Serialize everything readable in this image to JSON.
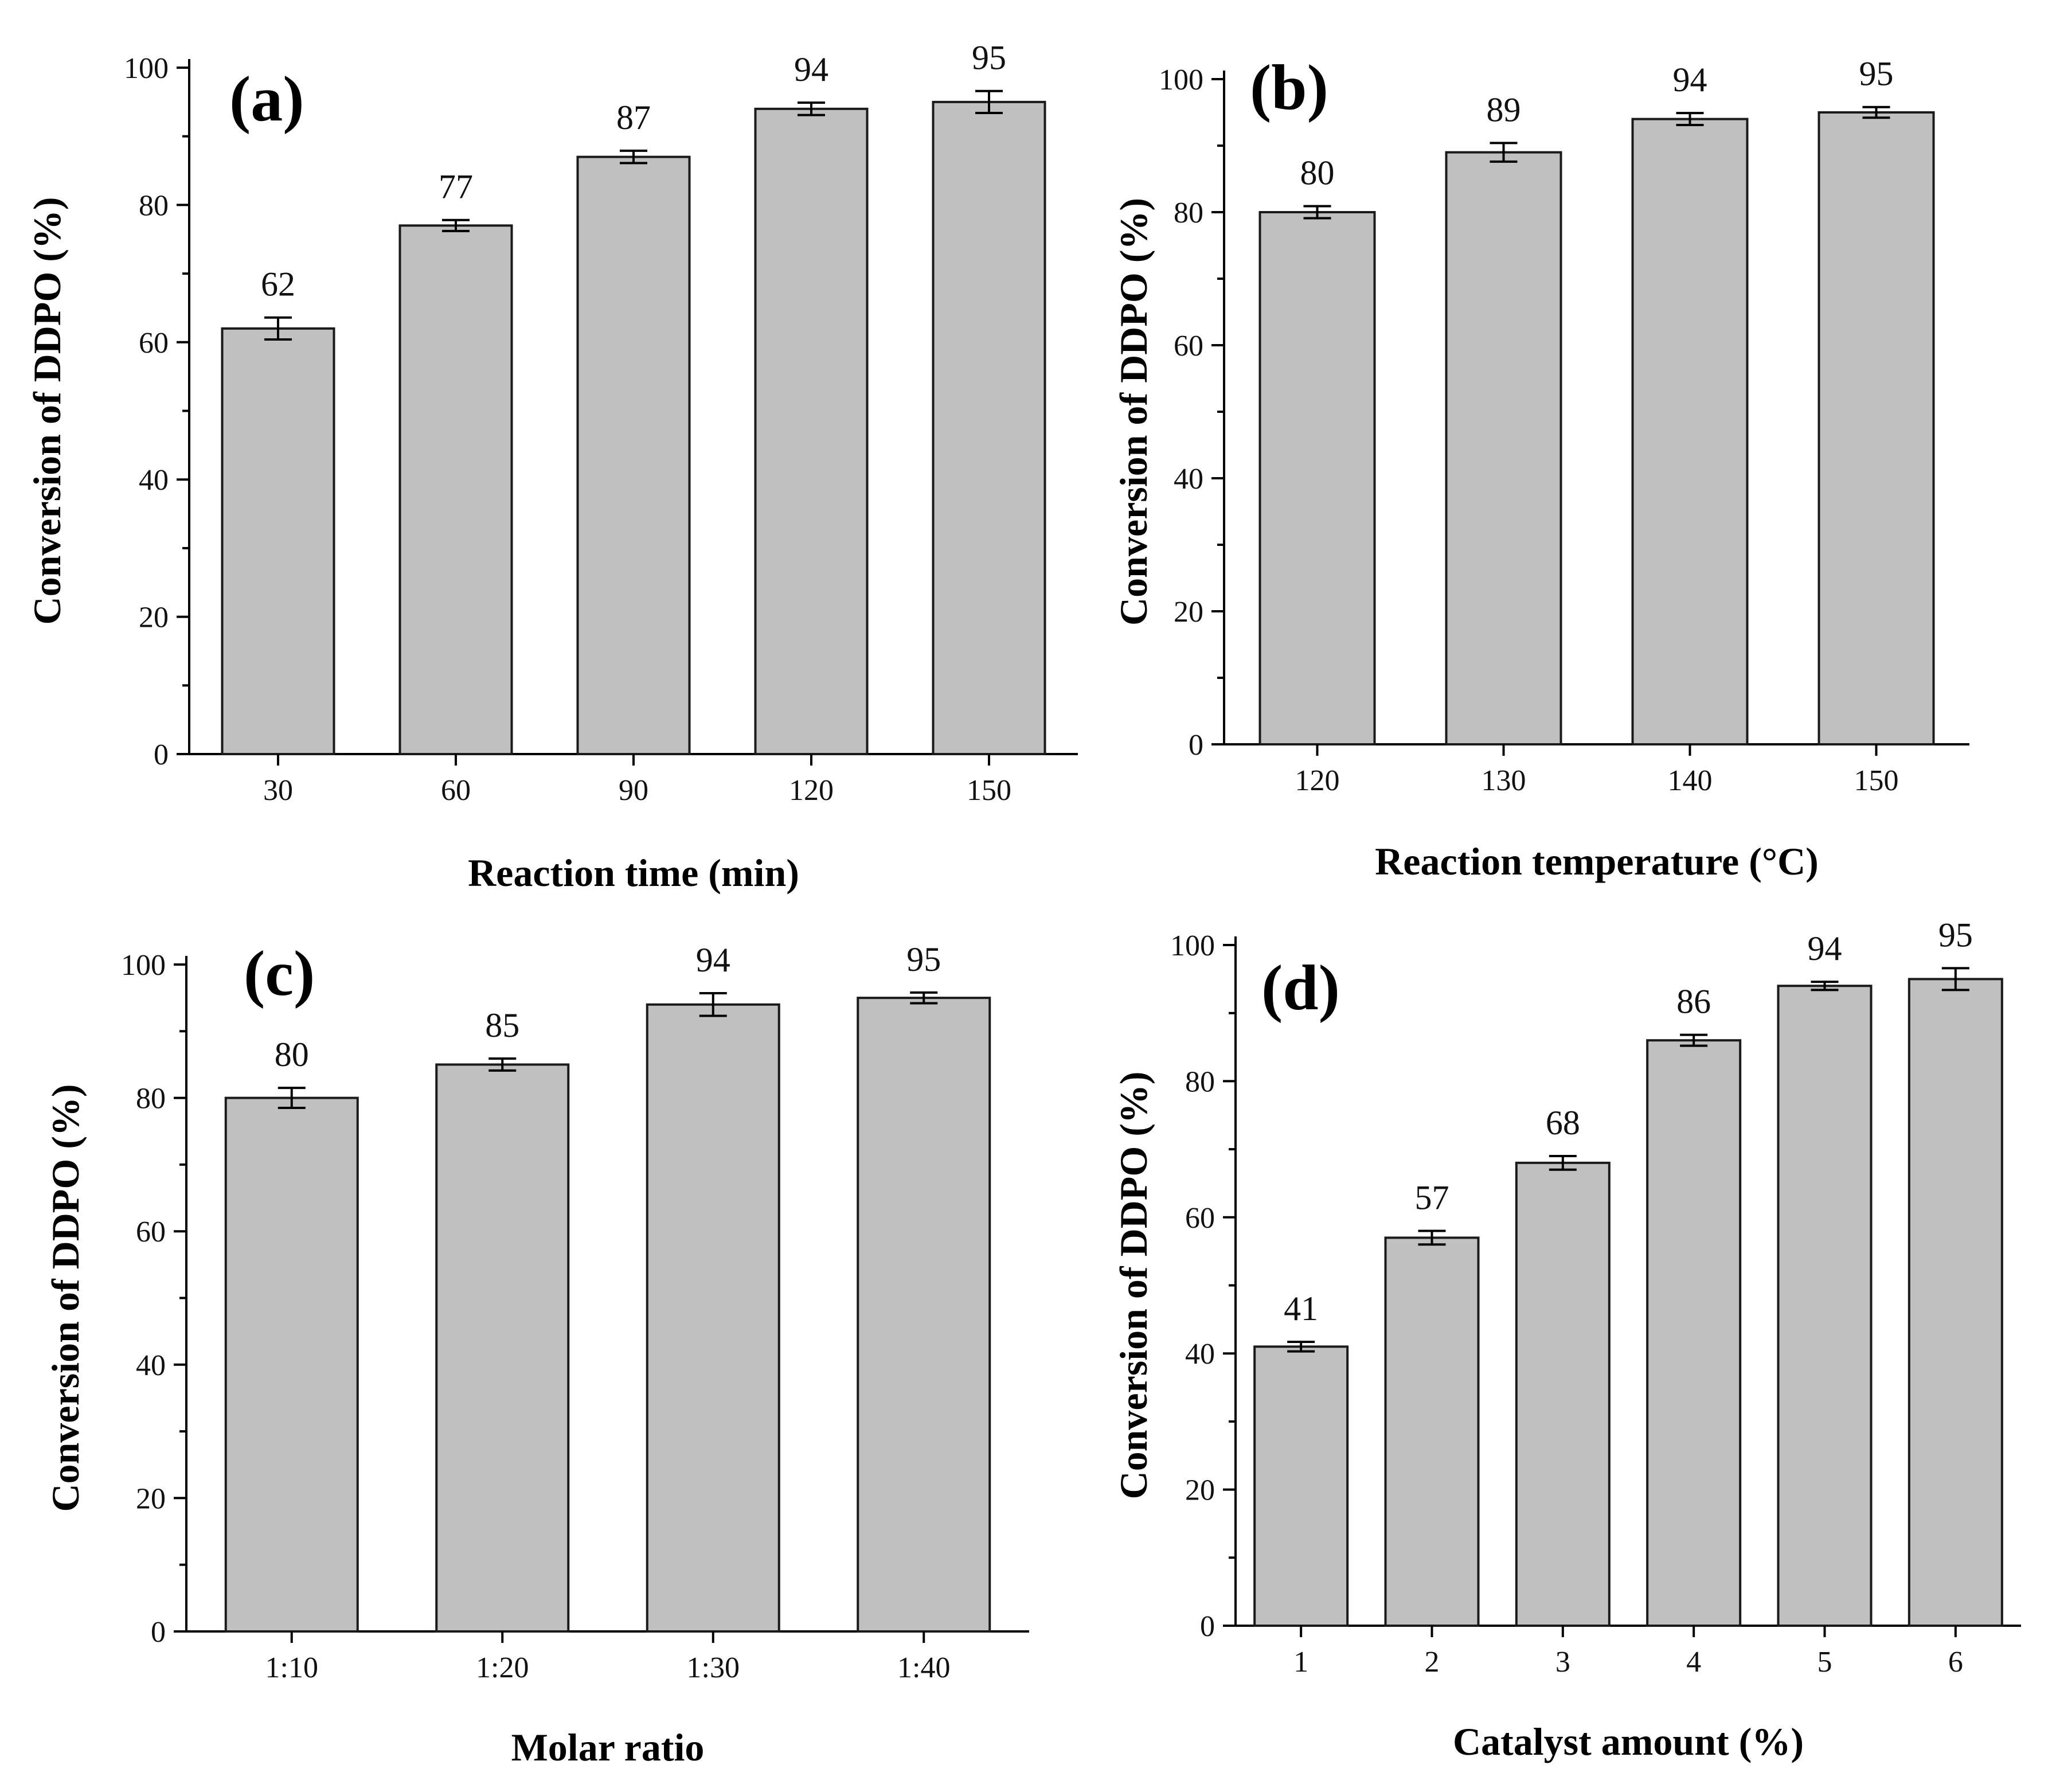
{
  "colors": {
    "bar_fill": "#c0c0c0",
    "bar_stroke": "#1a1a1a",
    "axis": "#000000",
    "background": "#ffffff"
  },
  "chart_data": [
    {
      "type": "bar",
      "panel_label": "(a)",
      "categories": [
        "30",
        "60",
        "90",
        "120",
        "150"
      ],
      "values": [
        62,
        77,
        87,
        94,
        95
      ],
      "error_bars": [
        1.6,
        0.8,
        0.9,
        0.9,
        1.6
      ],
      "data_labels": [
        "62",
        "77",
        "87",
        "94",
        "95"
      ],
      "xlabel": "Reaction time (min)",
      "ylabel": "Conversion of DDPO  (%)",
      "ylim": [
        0,
        100
      ],
      "yticks": [
        0,
        20,
        40,
        60,
        80,
        100
      ],
      "yticks_labels": [
        "0",
        "20",
        "40",
        "60",
        "80",
        "100"
      ],
      "minor_yticks": true
    },
    {
      "type": "bar",
      "panel_label": "(b)",
      "categories": [
        "120",
        "130",
        "140",
        "150"
      ],
      "values": [
        80,
        89,
        94,
        95
      ],
      "error_bars": [
        0.9,
        1.4,
        0.9,
        0.8
      ],
      "data_labels": [
        "80",
        "89",
        "94",
        "95"
      ],
      "xlabel": "Reaction temperature (°C)",
      "ylabel": "Conversion of DDPO  (%)",
      "ylim": [
        0,
        100
      ],
      "yticks": [
        0,
        20,
        40,
        60,
        80,
        100
      ],
      "yticks_labels": [
        "0",
        "20",
        "40",
        "60",
        "80",
        "100"
      ],
      "minor_yticks": true
    },
    {
      "type": "bar",
      "panel_label": "(c)",
      "categories": [
        "1:10",
        "1:20",
        "1:30",
        "1:40"
      ],
      "values": [
        80,
        85,
        94,
        95
      ],
      "error_bars": [
        1.5,
        0.9,
        1.7,
        0.8
      ],
      "data_labels": [
        "80",
        "85",
        "94",
        "95"
      ],
      "xlabel": "Molar ratio",
      "ylabel": "Conversion of DDPO  (%)",
      "ylim": [
        0,
        100
      ],
      "yticks": [
        0,
        20,
        40,
        60,
        80,
        100
      ],
      "yticks_labels": [
        "0",
        "20",
        "40",
        "60",
        "80",
        "100"
      ],
      "minor_yticks": true
    },
    {
      "type": "bar",
      "panel_label": "(d)",
      "categories": [
        "1",
        "2",
        "3",
        "4",
        "5",
        "6"
      ],
      "values": [
        41,
        57,
        68,
        86,
        94,
        95
      ],
      "error_bars": [
        0.7,
        1.0,
        1.0,
        0.8,
        0.6,
        1.6
      ],
      "data_labels": [
        "41",
        "57",
        "68",
        "86",
        "94",
        "95"
      ],
      "xlabel": "Catalyst amount (%)",
      "ylabel": "Conversion of DDPO  (%)",
      "ylim": [
        0,
        100
      ],
      "yticks": [
        0,
        20,
        40,
        60,
        80,
        100
      ],
      "yticks_labels": [
        "0",
        "20",
        "40",
        "60",
        "80",
        "100"
      ],
      "minor_yticks": true
    }
  ]
}
